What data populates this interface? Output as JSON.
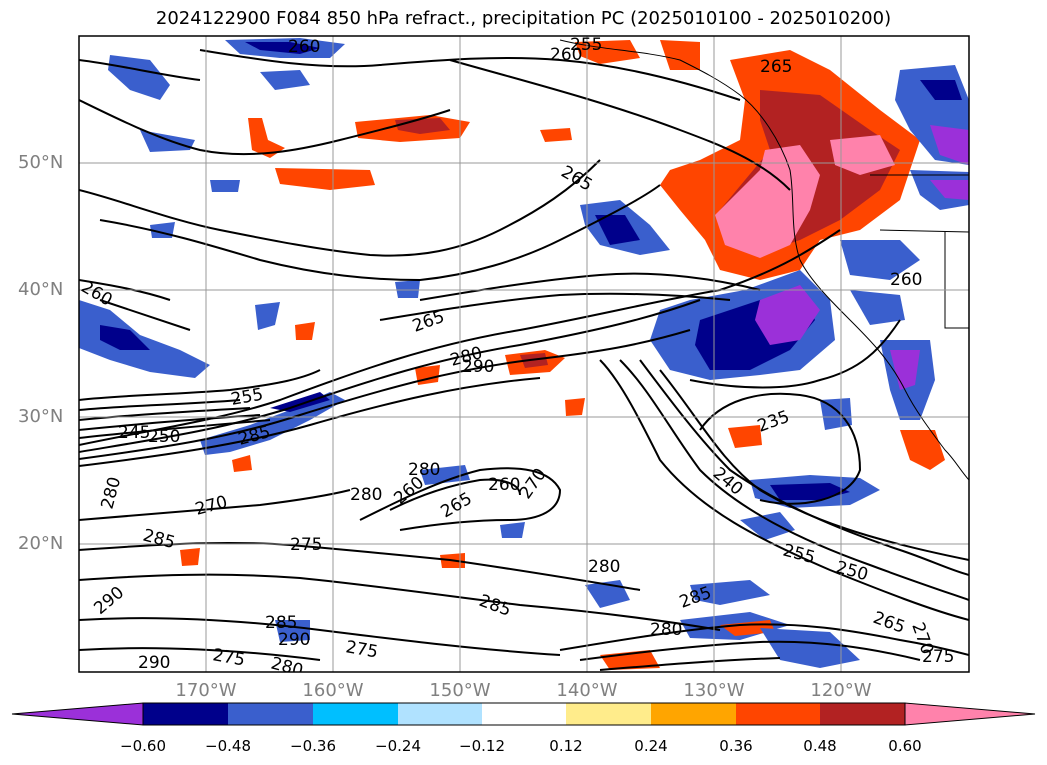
{
  "title": "2024122900 F084 850 hPa refract., precipitation PC (2025010100 - 2025010200)",
  "lat_labels": [
    "50°N",
    "40°N",
    "30°N",
    "20°N"
  ],
  "lon_labels": [
    "170°W",
    "160°W",
    "150°W",
    "140°W",
    "130°W",
    "120°W"
  ],
  "colorbar": {
    "ticks": [
      "−0.60",
      "−0.48",
      "−0.36",
      "−0.24",
      "−0.12",
      "0.12",
      "0.24",
      "0.36",
      "0.48",
      "0.60"
    ],
    "colors": [
      "#9b30d9",
      "#00008b",
      "#3a5fcd",
      "#00bfff",
      "#b0e2ff",
      "#ffffff",
      "#ffec8b",
      "#ffa500",
      "#ff4500",
      "#b22222",
      "#ff82ab"
    ]
  },
  "contour_labels": [
    "260",
    "255",
    "260",
    "265",
    "265",
    "260",
    "260",
    "265",
    "280",
    "290",
    "255",
    "245",
    "250",
    "285",
    "280",
    "270",
    "285",
    "275",
    "280",
    "280",
    "260",
    "265",
    "260",
    "270",
    "235",
    "240",
    "255",
    "250",
    "280",
    "285",
    "285",
    "290",
    "275",
    "280",
    "275",
    "280",
    "285",
    "290",
    "265",
    "270",
    "275",
    "290"
  ]
}
